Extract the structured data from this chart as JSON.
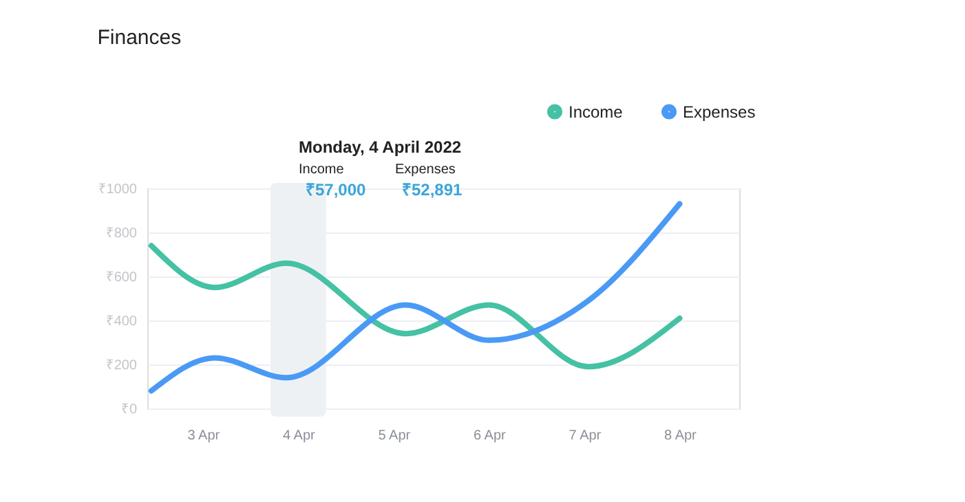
{
  "chart_data": {
    "type": "line",
    "title": "Finances",
    "x": [
      "2022-04-02T11:00",
      "2022-04-03T03:00",
      "2022-04-03T21:00",
      "2022-04-05T03:00",
      "2022-04-06",
      "2022-04-07T01:00",
      "2022-04-08"
    ],
    "series": [
      {
        "name": "Income",
        "color": "#45c1a4",
        "values": [
          740,
          550,
          660,
          340,
          470,
          190,
          410
        ]
      },
      {
        "name": "Expenses",
        "color": "#4a9af5",
        "values": [
          80,
          230,
          140,
          470,
          310,
          490,
          930
        ]
      }
    ],
    "xlim": [
      "2022-04-02T10:00",
      "2022-04-08T15:00"
    ],
    "xticks": [
      {
        "value": "2022-04-03",
        "label": "3 Apr"
      },
      {
        "value": "2022-04-04",
        "label": "4 Apr"
      },
      {
        "value": "2022-04-05",
        "label": "5 Apr"
      },
      {
        "value": "2022-04-06",
        "label": "6 Apr"
      },
      {
        "value": "2022-04-07",
        "label": "7 Apr"
      },
      {
        "value": "2022-04-08",
        "label": "8 Apr"
      }
    ],
    "ylim": [
      0,
      1000
    ],
    "yticks": [
      {
        "value": 0,
        "label": "₹0"
      },
      {
        "value": 200,
        "label": "₹200"
      },
      {
        "value": 400,
        "label": "₹400"
      },
      {
        "value": 600,
        "label": "₹600"
      },
      {
        "value": 800,
        "label": "₹800"
      },
      {
        "value": 1000,
        "label": "₹1000"
      }
    ],
    "bands": [
      {
        "axis": "x",
        "from": "2022-04-03T17:00",
        "to": "2022-04-04T07:00",
        "color": "#eef1f4"
      }
    ],
    "annotations": [
      "Monday, 4 April 2022",
      "Income",
      "Expenses",
      "₹57,000",
      "₹52,891"
    ],
    "grid": "y",
    "legend": "top right",
    "marker": "none",
    "line_style": "solid"
  }
}
